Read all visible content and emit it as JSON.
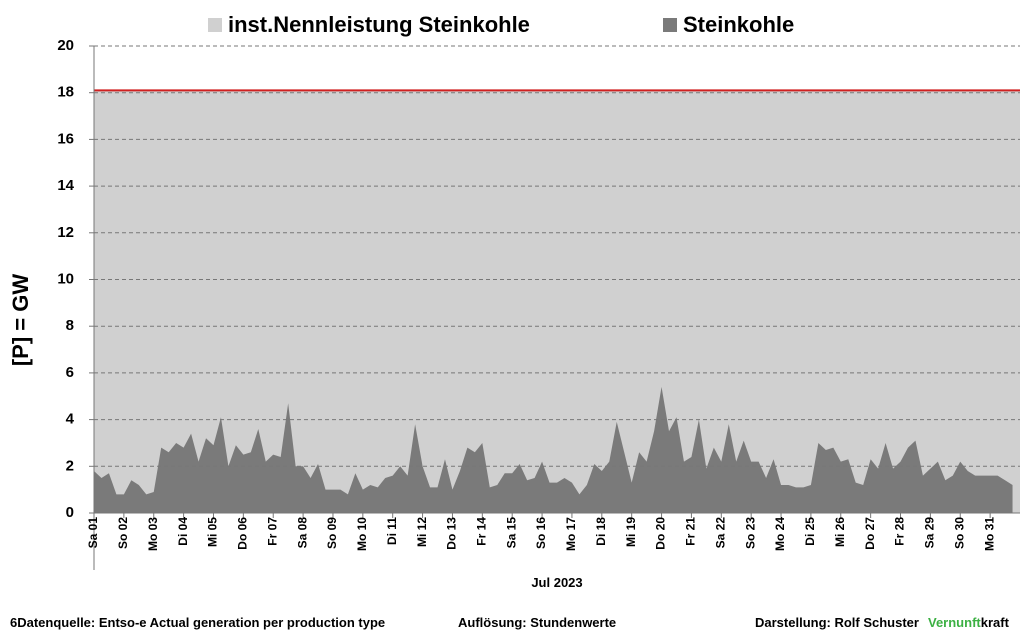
{
  "chart_data": {
    "type": "area",
    "y_label": "[P]  = GW",
    "x_label": "Jul 2023",
    "xlim": [
      0,
      744
    ],
    "xticks": [
      {
        "value": 0,
        "label": "Sa 01"
      },
      {
        "value": 24,
        "label": "So 02"
      },
      {
        "value": 48,
        "label": "Mo 03"
      },
      {
        "value": 72,
        "label": "Di 04"
      },
      {
        "value": 96,
        "label": "Mi 05"
      },
      {
        "value": 120,
        "label": "Do 06"
      },
      {
        "value": 144,
        "label": "Fr 07"
      },
      {
        "value": 168,
        "label": "Sa 08"
      },
      {
        "value": 192,
        "label": "So 09"
      },
      {
        "value": 216,
        "label": "Mo 10"
      },
      {
        "value": 240,
        "label": "Di 11"
      },
      {
        "value": 264,
        "label": "Mi 12"
      },
      {
        "value": 288,
        "label": "Do 13"
      },
      {
        "value": 312,
        "label": "Fr 14"
      },
      {
        "value": 336,
        "label": "Sa 15"
      },
      {
        "value": 360,
        "label": "So 16"
      },
      {
        "value": 384,
        "label": "Mo 17"
      },
      {
        "value": 408,
        "label": "Di 18"
      },
      {
        "value": 432,
        "label": "Mi 19"
      },
      {
        "value": 456,
        "label": "Do 20"
      },
      {
        "value": 480,
        "label": "Fr 21"
      },
      {
        "value": 504,
        "label": "Sa 22"
      },
      {
        "value": 528,
        "label": "So 23"
      },
      {
        "value": 552,
        "label": "Mo 24"
      },
      {
        "value": 576,
        "label": "Di 25"
      },
      {
        "value": 600,
        "label": "Mi 26"
      },
      {
        "value": 624,
        "label": "Do 27"
      },
      {
        "value": 648,
        "label": "Fr 28"
      },
      {
        "value": 672,
        "label": "Sa 29"
      },
      {
        "value": 696,
        "label": "So 30"
      },
      {
        "value": 720,
        "label": "Mo 31"
      }
    ],
    "ylim": [
      0,
      20
    ],
    "yticks": [
      0,
      2,
      4,
      6,
      8,
      10,
      12,
      14,
      16,
      18,
      20
    ],
    "grid": true,
    "series": [
      {
        "name": "inst.Nennleistung Steinkohle",
        "color": "#d0d0d0",
        "line_color": "#d02020",
        "x": [
          0,
          744
        ],
        "values": [
          18.1,
          18.1
        ]
      },
      {
        "name": "Steinkohle",
        "color": "#7a7a7a",
        "x": [
          0,
          6,
          12,
          18,
          24,
          30,
          36,
          42,
          48,
          54,
          60,
          66,
          72,
          78,
          84,
          90,
          96,
          102,
          108,
          114,
          120,
          126,
          132,
          138,
          144,
          150,
          156,
          162,
          168,
          174,
          180,
          186,
          192,
          198,
          204,
          210,
          216,
          222,
          228,
          234,
          240,
          246,
          252,
          258,
          264,
          270,
          276,
          282,
          288,
          294,
          300,
          306,
          312,
          318,
          324,
          330,
          336,
          342,
          348,
          354,
          360,
          366,
          372,
          378,
          384,
          390,
          396,
          402,
          408,
          414,
          420,
          426,
          432,
          438,
          444,
          450,
          456,
          462,
          468,
          474,
          480,
          486,
          492,
          498,
          504,
          510,
          516,
          522,
          528,
          534,
          540,
          546,
          552,
          558,
          564,
          570,
          576,
          582,
          588,
          594,
          600,
          606,
          612,
          618,
          624,
          630,
          636,
          642,
          648,
          654,
          660,
          666,
          672,
          678,
          684,
          690,
          696,
          702,
          708,
          714,
          720,
          726,
          732,
          738
        ],
        "values": [
          1.8,
          1.5,
          1.7,
          0.8,
          0.8,
          1.4,
          1.2,
          0.8,
          0.9,
          2.8,
          2.6,
          3.0,
          2.8,
          3.4,
          2.2,
          3.2,
          2.9,
          4.1,
          2.0,
          2.9,
          2.5,
          2.6,
          3.6,
          2.2,
          2.5,
          2.4,
          4.7,
          2.0,
          2.0,
          1.5,
          2.1,
          1.0,
          1.0,
          1.0,
          0.8,
          1.7,
          1.0,
          1.2,
          1.1,
          1.5,
          1.6,
          2.0,
          1.6,
          3.8,
          2.0,
          1.1,
          1.1,
          2.3,
          1.0,
          1.8,
          2.8,
          2.6,
          3.0,
          1.1,
          1.2,
          1.7,
          1.7,
          2.1,
          1.4,
          1.5,
          2.2,
          1.3,
          1.3,
          1.5,
          1.3,
          0.8,
          1.2,
          2.1,
          1.8,
          2.2,
          3.9,
          2.6,
          1.3,
          2.6,
          2.2,
          3.5,
          5.4,
          3.5,
          4.1,
          2.2,
          2.4,
          4.0,
          1.9,
          2.8,
          2.2,
          3.8,
          2.2,
          3.1,
          2.2,
          2.2,
          1.5,
          2.3,
          1.2,
          1.2,
          1.1,
          1.1,
          1.2,
          3.0,
          2.7,
          2.8,
          2.2,
          2.3,
          1.3,
          1.2,
          2.3,
          1.9,
          3.0,
          1.9,
          2.2,
          2.8,
          3.1,
          1.6,
          1.9,
          2.2,
          1.4,
          1.6,
          2.2,
          1.8,
          1.6,
          1.6,
          1.6,
          1.6,
          1.4,
          1.2
        ]
      }
    ]
  },
  "footer": {
    "source": "6Datenquelle: Entso-e  Actual generation per production type",
    "resolution": "Auflösung:  Stundenwerte",
    "author": "Darstellung:  Rolf Schuster",
    "brand_a": "Vernunft",
    "brand_b": "kraft"
  }
}
